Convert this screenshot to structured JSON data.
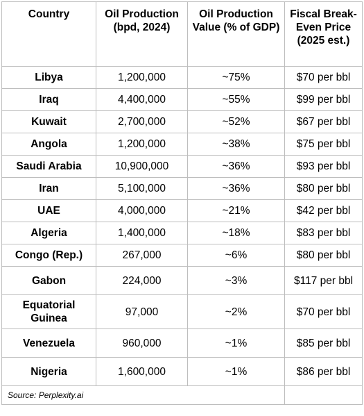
{
  "table": {
    "headers": [
      "Country",
      "Oil Production (bpd, 2024)",
      "Oil Production Value (% of GDP)",
      "Fiscal Break-Even Price (2025 est.)"
    ],
    "rows": [
      {
        "country": "Libya",
        "production": "1,200,000",
        "pct_gdp": "~75%",
        "breakeven": "$70 per bbl"
      },
      {
        "country": "Iraq",
        "production": "4,400,000",
        "pct_gdp": "~55%",
        "breakeven": "$99 per bbl"
      },
      {
        "country": "Kuwait",
        "production": "2,700,000",
        "pct_gdp": "~52%",
        "breakeven": "$67 per bbl"
      },
      {
        "country": "Angola",
        "production": "1,200,000",
        "pct_gdp": "~38%",
        "breakeven": "$75 per bbl"
      },
      {
        "country": "Saudi Arabia",
        "production": "10,900,000",
        "pct_gdp": "~36%",
        "breakeven": "$93 per bbl"
      },
      {
        "country": "Iran",
        "production": "5,100,000",
        "pct_gdp": "~36%",
        "breakeven": "$80 per bbl"
      },
      {
        "country": "UAE",
        "production": "4,000,000",
        "pct_gdp": "~21%",
        "breakeven": "$42 per bbl"
      },
      {
        "country": "Algeria",
        "production": "1,400,000",
        "pct_gdp": "~18%",
        "breakeven": "$83 per bbl"
      },
      {
        "country": "Congo (Rep.)",
        "production": "267,000",
        "pct_gdp": "~6%",
        "breakeven": "$80 per bbl"
      },
      {
        "country": "Gabon",
        "production": "224,000",
        "pct_gdp": "~3%",
        "breakeven": "$117 per bbl"
      },
      {
        "country": "Equatorial Guinea",
        "production": "97,000",
        "pct_gdp": "~2%",
        "breakeven": "$70 per bbl"
      },
      {
        "country": "Venezuela",
        "production": "960,000",
        "pct_gdp": "~1%",
        "breakeven": "$85 per bbl"
      },
      {
        "country": "Nigeria",
        "production": "1,600,000",
        "pct_gdp": "~1%",
        "breakeven": "$86 per bbl"
      }
    ],
    "source": "Source: Perplexity.ai"
  }
}
